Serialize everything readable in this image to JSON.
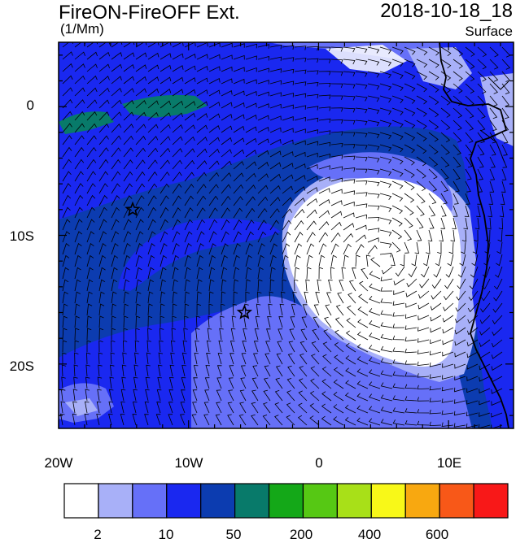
{
  "title": "FireON-FireOFF Ext.",
  "units": "(1/Mm)",
  "datetime": "2018-10-18_18",
  "level": "Surface",
  "lat_labels": [
    "0",
    "10S",
    "20S"
  ],
  "lon_labels": [
    "20W",
    "10W",
    "0",
    "10E"
  ],
  "colorbar": {
    "labels": [
      "2",
      "10",
      "50",
      "200",
      "400",
      "600"
    ],
    "colors": [
      "#ffffff",
      "#a8b0f8",
      "#6670f8",
      "#1a28f0",
      "#0c3cb0",
      "#087a6a",
      "#14a818",
      "#56c814",
      "#a8e018",
      "#f8f818",
      "#f8a810",
      "#f85818",
      "#f81818"
    ]
  },
  "map": {
    "lon_range": [
      -20,
      15
    ],
    "lat_range": [
      -25,
      5
    ],
    "markers": [
      {
        "name": "star",
        "lon": -14.3,
        "lat": -8.0
      },
      {
        "name": "star",
        "lon": -5.7,
        "lat": -16.0
      }
    ]
  }
}
